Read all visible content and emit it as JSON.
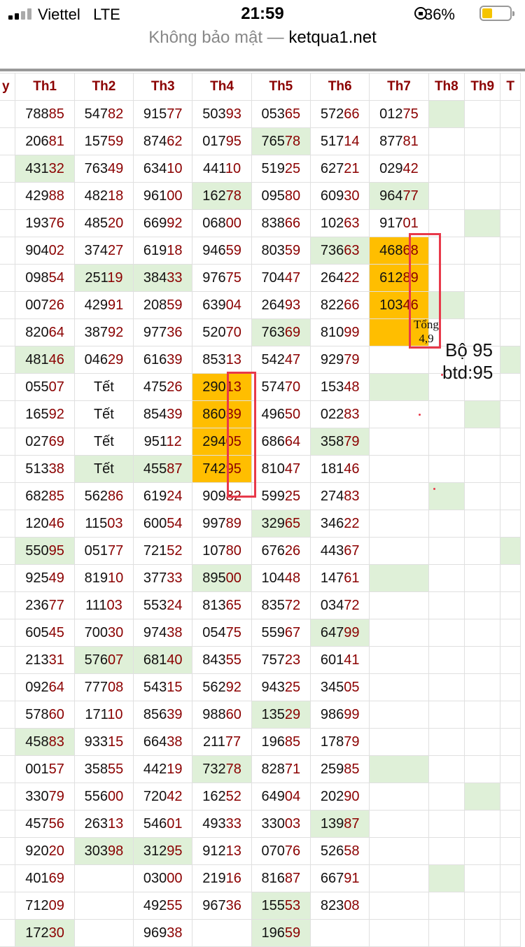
{
  "status_bar": {
    "carrier": "Viettel",
    "network": "LTE",
    "time": "21:59",
    "battery": "36%",
    "battery_level": 0.36
  },
  "browser": {
    "security": "Không bảo mật —",
    "host": "ketqua1.net"
  },
  "table": {
    "headers": [
      "y",
      "Th1",
      "Th2",
      "Th3",
      "Th4",
      "Th5",
      "Th6",
      "Th7",
      "Th8",
      "Th9",
      "T"
    ],
    "rows": [
      [
        "",
        "78885",
        "54782",
        "91577",
        "50393",
        "05365",
        "57266",
        "01275",
        "",
        "",
        ""
      ],
      [
        "",
        "20681",
        "15759",
        "87462",
        "01795",
        "76578",
        "51714",
        "87781",
        "",
        "",
        ""
      ],
      [
        "",
        "43132",
        "76349",
        "63410",
        "44110",
        "51925",
        "62721",
        "02942",
        "",
        "",
        ""
      ],
      [
        "",
        "42988",
        "48218",
        "96100",
        "16278",
        "09580",
        "60930",
        "96477",
        "",
        "",
        ""
      ],
      [
        "",
        "19376",
        "48520",
        "66992",
        "06800",
        "83866",
        "10263",
        "91701",
        "",
        "",
        ""
      ],
      [
        "",
        "90402",
        "37427",
        "61918",
        "94659",
        "80359",
        "73663",
        "46868",
        "",
        "",
        ""
      ],
      [
        "",
        "09854",
        "25119",
        "38433",
        "97675",
        "70447",
        "26422",
        "61289",
        "",
        "",
        ""
      ],
      [
        "",
        "00726",
        "42991",
        "20859",
        "63904",
        "26493",
        "82266",
        "10346",
        "",
        "",
        ""
      ],
      [
        "",
        "82064",
        "38792",
        "97736",
        "52070",
        "76369",
        "81099",
        "",
        "",
        "",
        ""
      ],
      [
        "",
        "48146",
        "04629",
        "61639",
        "85313",
        "54247",
        "92979",
        "",
        "",
        "",
        ""
      ],
      [
        "",
        "05507",
        "Tết",
        "47526",
        "29013",
        "57470",
        "15348",
        "",
        "",
        "",
        ""
      ],
      [
        "",
        "16592",
        "Tết",
        "85439",
        "86039",
        "49650",
        "02283",
        "",
        "",
        "",
        ""
      ],
      [
        "",
        "02769",
        "Tết",
        "95112",
        "29405",
        "68664",
        "35879",
        "",
        "",
        "",
        ""
      ],
      [
        "",
        "51338",
        "Tết",
        "45587",
        "74295",
        "81047",
        "18146",
        "",
        "",
        "",
        ""
      ],
      [
        "",
        "68285",
        "56286",
        "61924",
        "90982",
        "59925",
        "27483",
        "",
        "",
        "",
        ""
      ],
      [
        "",
        "12046",
        "11503",
        "60054",
        "99789",
        "32965",
        "34622",
        "",
        "",
        "",
        ""
      ],
      [
        "",
        "55095",
        "05177",
        "72152",
        "10780",
        "67626",
        "44367",
        "",
        "",
        "",
        ""
      ],
      [
        "",
        "92549",
        "81910",
        "37733",
        "89500",
        "10448",
        "14761",
        "",
        "",
        "",
        ""
      ],
      [
        "",
        "23677",
        "11103",
        "55324",
        "81365",
        "83572",
        "03472",
        "",
        "",
        "",
        ""
      ],
      [
        "",
        "60545",
        "70030",
        "97438",
        "05475",
        "55967",
        "64799",
        "",
        "",
        "",
        ""
      ],
      [
        "",
        "21331",
        "57607",
        "68140",
        "84355",
        "75723",
        "60141",
        "",
        "",
        "",
        ""
      ],
      [
        "",
        "09264",
        "77708",
        "54315",
        "56292",
        "94325",
        "34505",
        "",
        "",
        "",
        ""
      ],
      [
        "",
        "57860",
        "17110",
        "85639",
        "98860",
        "13529",
        "98699",
        "",
        "",
        "",
        ""
      ],
      [
        "",
        "45883",
        "93315",
        "66438",
        "21177",
        "19685",
        "17879",
        "",
        "",
        "",
        ""
      ],
      [
        "",
        "00157",
        "35855",
        "44219",
        "73278",
        "82871",
        "25985",
        "",
        "",
        "",
        ""
      ],
      [
        "",
        "33079",
        "55600",
        "72042",
        "16252",
        "64904",
        "20290",
        "",
        "",
        "",
        ""
      ],
      [
        "",
        "45756",
        "26313",
        "54601",
        "49333",
        "33003",
        "13987",
        "",
        "",
        "",
        ""
      ],
      [
        "",
        "92020",
        "30398",
        "31295",
        "91213",
        "07076",
        "52658",
        "",
        "",
        "",
        ""
      ],
      [
        "",
        "40169",
        "",
        "03000",
        "21916",
        "81687",
        "66791",
        "",
        "",
        "",
        ""
      ],
      [
        "",
        "71209",
        "",
        "49255",
        "96736",
        "15553",
        "82308",
        "",
        "",
        "",
        ""
      ],
      [
        "",
        "17230",
        "",
        "96938",
        "",
        "19659",
        "",
        "",
        "",
        "",
        ""
      ]
    ],
    "green_cells": [
      [
        0,
        8
      ],
      [
        1,
        5
      ],
      [
        2,
        1
      ],
      [
        3,
        4
      ],
      [
        3,
        7
      ],
      [
        4,
        9
      ],
      [
        5,
        6
      ],
      [
        6,
        2
      ],
      [
        6,
        3
      ],
      [
        7,
        8
      ],
      [
        8,
        5
      ],
      [
        9,
        1
      ],
      [
        9,
        10
      ],
      [
        10,
        7
      ],
      [
        11,
        9
      ],
      [
        12,
        6
      ],
      [
        13,
        2
      ],
      [
        13,
        3
      ],
      [
        14,
        8
      ],
      [
        15,
        5
      ],
      [
        16,
        1
      ],
      [
        16,
        10
      ],
      [
        17,
        4
      ],
      [
        17,
        7
      ],
      [
        19,
        6
      ],
      [
        20,
        2
      ],
      [
        20,
        3
      ],
      [
        22,
        5
      ],
      [
        23,
        1
      ],
      [
        24,
        4
      ],
      [
        24,
        7
      ],
      [
        25,
        9
      ],
      [
        26,
        6
      ],
      [
        27,
        2
      ],
      [
        27,
        3
      ],
      [
        28,
        8
      ],
      [
        29,
        5
      ],
      [
        30,
        1
      ],
      [
        30,
        5
      ]
    ],
    "orange_cells": [
      [
        5,
        7
      ],
      [
        6,
        7
      ],
      [
        7,
        7
      ],
      [
        8,
        7
      ],
      [
        10,
        4
      ],
      [
        11,
        4
      ],
      [
        12,
        4
      ],
      [
        13,
        4
      ]
    ]
  },
  "annotations": {
    "tong_line1": "Tổng",
    "tong_line2": "4,9",
    "bo": "Bộ 95",
    "btd": "btd:95"
  }
}
